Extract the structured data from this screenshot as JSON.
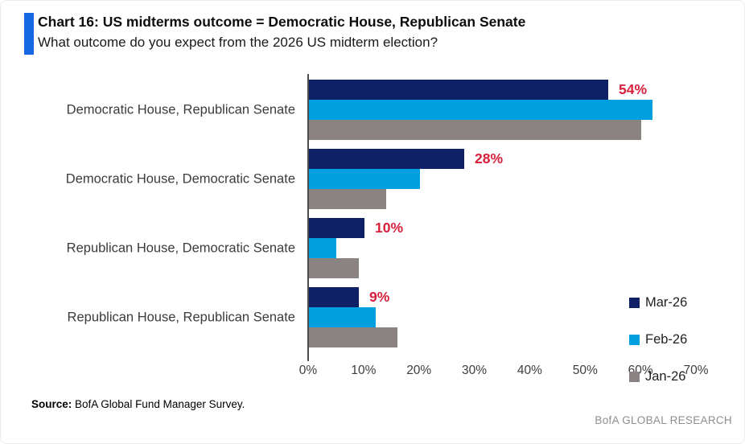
{
  "header": {
    "title": "Chart 16: US midterms outcome = Democratic House, Republican Senate",
    "subtitle": "What outcome do you expect from the 2026 US midterm election?",
    "accent_color": "#1766e2"
  },
  "chart_data": {
    "type": "bar",
    "orientation": "horizontal",
    "title": "Chart 16: US midterms outcome = Democratic House, Republican Senate",
    "categories": [
      "Democratic House, Republican Senate",
      "Democratic House, Democratic Senate",
      "Republican House, Democratic Senate",
      "Republican House, Republican Senate"
    ],
    "series": [
      {
        "name": "Mar-26",
        "color": "#0e2166",
        "values": [
          54,
          28,
          10,
          9
        ]
      },
      {
        "name": "Feb-26",
        "color": "#00a0e0",
        "values": [
          62,
          20,
          5,
          12
        ]
      },
      {
        "name": "Jan-26",
        "color": "#8b8382",
        "values": [
          60,
          14,
          9,
          16
        ]
      }
    ],
    "value_labels": [
      "54%",
      "28%",
      "10%",
      "9%"
    ],
    "value_label_color": "#d8203c",
    "xlabel": "",
    "ylabel": "",
    "xlim": [
      0,
      70
    ],
    "xticks": [
      "0%",
      "10%",
      "20%",
      "30%",
      "40%",
      "50%",
      "60%",
      "70%"
    ],
    "grid": false,
    "legend_position": "right"
  },
  "footer": {
    "source_label": "Source:",
    "source_text": " BofA Global Fund Manager Survey.",
    "brand": "BofA GLOBAL RESEARCH"
  }
}
